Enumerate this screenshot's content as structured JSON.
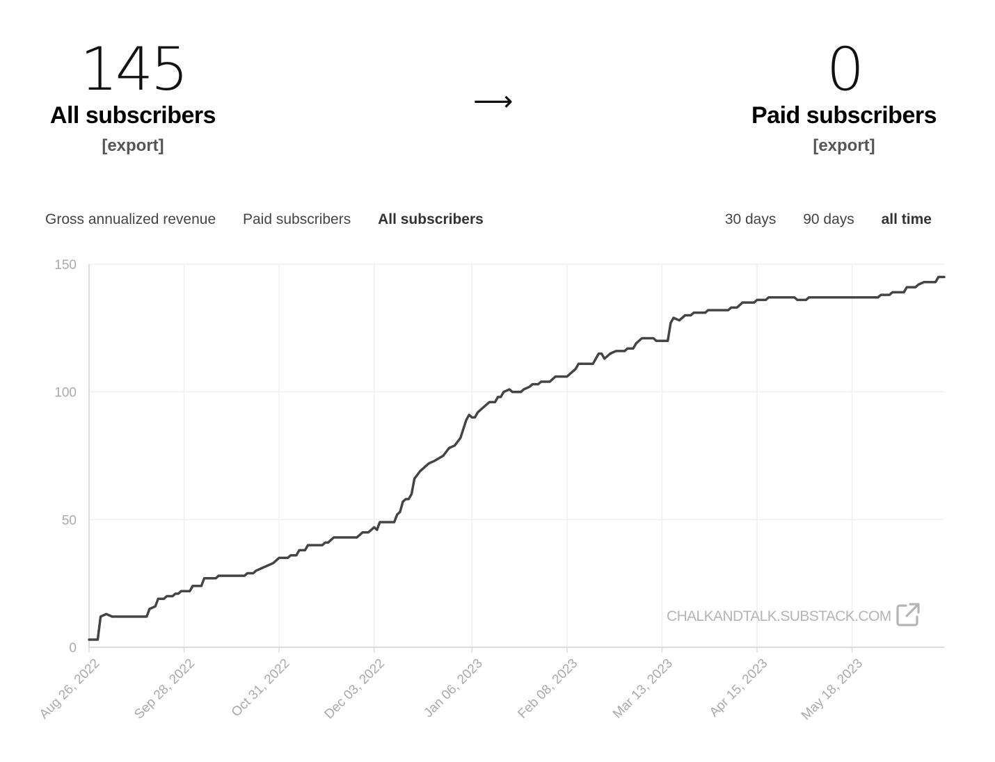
{
  "stats": {
    "all": {
      "value": "145",
      "label": "All subscribers",
      "export": "[export]"
    },
    "arrow": "⟶",
    "paid": {
      "value": "0",
      "label": "Paid subscribers",
      "export": "[export]"
    }
  },
  "tabs": [
    "Gross annualized revenue",
    "Paid subscribers",
    "All subscribers"
  ],
  "active_tab": "All subscribers",
  "ranges": [
    "30 days",
    "90 days",
    "all time"
  ],
  "active_range": "all time",
  "watermark": "CHALKANDTALK.SUBSTACK.COM",
  "icons": {
    "external": "external-link-icon"
  },
  "colors": {
    "line": "#444444",
    "grid": "#efefef",
    "axis": "#dddddd",
    "tick_text": "#aaaaaa",
    "watermark": "#b5b5b5"
  },
  "chart_data": {
    "type": "line",
    "title": "",
    "xlabel": "",
    "ylabel": "",
    "x_tick_labels": [
      "Aug 26, 2022",
      "Sep 28, 2022",
      "Oct 31, 2022",
      "Dec 03, 2022",
      "Jan 06, 2023",
      "Feb 08, 2023",
      "Mar 13, 2023",
      "Apr 15, 2023",
      "May 18, 2023"
    ],
    "x_tick_dates": [
      "2022-08-26",
      "2022-09-28",
      "2022-10-31",
      "2022-12-03",
      "2023-01-06",
      "2023-02-08",
      "2023-03-13",
      "2023-04-15",
      "2023-05-18"
    ],
    "xlim": [
      "2022-08-26",
      "2023-06-19"
    ],
    "y_ticks": [
      0,
      50,
      100,
      150
    ],
    "ylim": [
      0,
      150
    ],
    "grid": true,
    "series": [
      {
        "name": "",
        "points": [
          [
            "2022-08-26",
            3
          ],
          [
            "2022-08-29",
            3
          ],
          [
            "2022-08-30",
            12
          ],
          [
            "2022-09-01",
            13
          ],
          [
            "2022-09-03",
            12
          ],
          [
            "2022-09-15",
            12
          ],
          [
            "2022-09-16",
            15
          ],
          [
            "2022-09-18",
            16
          ],
          [
            "2022-09-19",
            19
          ],
          [
            "2022-09-21",
            19
          ],
          [
            "2022-09-22",
            20
          ],
          [
            "2022-09-24",
            20
          ],
          [
            "2022-09-25",
            21
          ],
          [
            "2022-09-26",
            21
          ],
          [
            "2022-09-27",
            22
          ],
          [
            "2022-09-30",
            22
          ],
          [
            "2022-10-01",
            24
          ],
          [
            "2022-10-04",
            24
          ],
          [
            "2022-10-05",
            27
          ],
          [
            "2022-10-09",
            27
          ],
          [
            "2022-10-10",
            28
          ],
          [
            "2022-10-19",
            28
          ],
          [
            "2022-10-20",
            29
          ],
          [
            "2022-10-22",
            29
          ],
          [
            "2022-10-23",
            30
          ],
          [
            "2022-10-25",
            31
          ],
          [
            "2022-10-27",
            32
          ],
          [
            "2022-10-29",
            33
          ],
          [
            "2022-10-31",
            35
          ],
          [
            "2022-11-03",
            35
          ],
          [
            "2022-11-04",
            36
          ],
          [
            "2022-11-06",
            36
          ],
          [
            "2022-11-07",
            38
          ],
          [
            "2022-11-09",
            38
          ],
          [
            "2022-11-10",
            40
          ],
          [
            "2022-11-15",
            40
          ],
          [
            "2022-11-16",
            41
          ],
          [
            "2022-11-17",
            41
          ],
          [
            "2022-11-18",
            42
          ],
          [
            "2022-11-19",
            43
          ],
          [
            "2022-11-27",
            43
          ],
          [
            "2022-11-28",
            44
          ],
          [
            "2022-11-29",
            45
          ],
          [
            "2022-12-01",
            45
          ],
          [
            "2022-12-03",
            47
          ],
          [
            "2022-12-04",
            46
          ],
          [
            "2022-12-05",
            49
          ],
          [
            "2022-12-10",
            49
          ],
          [
            "2022-12-11",
            52
          ],
          [
            "2022-12-12",
            53
          ],
          [
            "2022-12-13",
            57
          ],
          [
            "2022-12-14",
            58
          ],
          [
            "2022-12-15",
            58
          ],
          [
            "2022-12-16",
            60
          ],
          [
            "2022-12-17",
            66
          ],
          [
            "2022-12-19",
            69
          ],
          [
            "2022-12-20",
            70
          ],
          [
            "2022-12-22",
            72
          ],
          [
            "2022-12-24",
            73
          ],
          [
            "2022-12-27",
            75
          ],
          [
            "2022-12-29",
            78
          ],
          [
            "2022-12-31",
            79
          ],
          [
            "2023-01-02",
            82
          ],
          [
            "2023-01-04",
            89
          ],
          [
            "2023-01-05",
            91
          ],
          [
            "2023-01-06",
            90
          ],
          [
            "2023-01-07",
            90
          ],
          [
            "2023-01-08",
            92
          ],
          [
            "2023-01-12",
            96
          ],
          [
            "2023-01-14",
            96
          ],
          [
            "2023-01-15",
            98
          ],
          [
            "2023-01-16",
            98
          ],
          [
            "2023-01-17",
            100
          ],
          [
            "2023-01-19",
            101
          ],
          [
            "2023-01-20",
            100
          ],
          [
            "2023-01-23",
            100
          ],
          [
            "2023-01-24",
            101
          ],
          [
            "2023-01-26",
            102
          ],
          [
            "2023-01-27",
            103
          ],
          [
            "2023-01-29",
            103
          ],
          [
            "2023-01-30",
            104
          ],
          [
            "2023-02-02",
            104
          ],
          [
            "2023-02-03",
            105
          ],
          [
            "2023-02-04",
            106
          ],
          [
            "2023-02-08",
            106
          ],
          [
            "2023-02-11",
            109
          ],
          [
            "2023-02-12",
            111
          ],
          [
            "2023-02-17",
            111
          ],
          [
            "2023-02-19",
            115
          ],
          [
            "2023-02-20",
            115
          ],
          [
            "2023-02-21",
            113
          ],
          [
            "2023-02-23",
            115
          ],
          [
            "2023-02-25",
            116
          ],
          [
            "2023-02-28",
            116
          ],
          [
            "2023-03-01",
            117
          ],
          [
            "2023-03-03",
            117
          ],
          [
            "2023-03-04",
            119
          ],
          [
            "2023-03-06",
            121
          ],
          [
            "2023-03-10",
            121
          ],
          [
            "2023-03-11",
            120
          ],
          [
            "2023-03-15",
            120
          ],
          [
            "2023-03-16",
            127
          ],
          [
            "2023-03-17",
            129
          ],
          [
            "2023-03-19",
            128
          ],
          [
            "2023-03-21",
            130
          ],
          [
            "2023-03-23",
            130
          ],
          [
            "2023-03-24",
            131
          ],
          [
            "2023-03-28",
            131
          ],
          [
            "2023-03-29",
            132
          ],
          [
            "2023-04-05",
            132
          ],
          [
            "2023-04-06",
            133
          ],
          [
            "2023-04-08",
            133
          ],
          [
            "2023-04-10",
            135
          ],
          [
            "2023-04-14",
            135
          ],
          [
            "2023-04-15",
            136
          ],
          [
            "2023-04-18",
            136
          ],
          [
            "2023-04-19",
            137
          ],
          [
            "2023-04-28",
            137
          ],
          [
            "2023-04-29",
            136
          ],
          [
            "2023-05-02",
            136
          ],
          [
            "2023-05-03",
            137
          ],
          [
            "2023-05-27",
            137
          ],
          [
            "2023-05-28",
            138
          ],
          [
            "2023-05-31",
            138
          ],
          [
            "2023-06-01",
            139
          ],
          [
            "2023-06-05",
            139
          ],
          [
            "2023-06-06",
            141
          ],
          [
            "2023-06-09",
            141
          ],
          [
            "2023-06-10",
            142
          ],
          [
            "2023-06-12",
            143
          ],
          [
            "2023-06-16",
            143
          ],
          [
            "2023-06-17",
            145
          ],
          [
            "2023-06-19",
            145
          ]
        ]
      }
    ]
  }
}
